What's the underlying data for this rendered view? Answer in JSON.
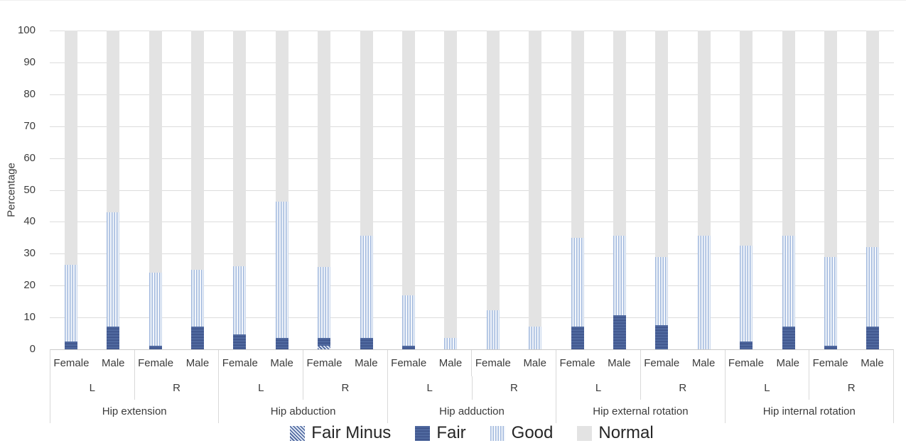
{
  "chart_data": {
    "type": "bar",
    "stacked": true,
    "orientation": "vertical",
    "title": "",
    "ylabel": "Percentage",
    "xlabel": "",
    "ylim": [
      0,
      100
    ],
    "yticks": [
      0,
      10,
      20,
      30,
      40,
      50,
      60,
      70,
      80,
      90,
      100
    ],
    "grid": true,
    "legend_position": "bottom",
    "series_order": [
      "fair_minus",
      "fair",
      "good",
      "normal"
    ],
    "legend": [
      {
        "key": "fair_minus",
        "label": "Fair Minus",
        "pattern": "diagonal-hatch",
        "color": "#46619b"
      },
      {
        "key": "fair",
        "label": "Fair",
        "pattern": "horizontal-stripes",
        "color": "#46619b"
      },
      {
        "key": "good",
        "label": "Good",
        "pattern": "vertical-stripes",
        "color": "#a2b9de"
      },
      {
        "key": "normal",
        "label": "Normal",
        "pattern": "solid",
        "color": "#e3e3e3"
      }
    ],
    "groups": [
      {
        "movement": "Hip extension",
        "sides": [
          {
            "side": "L",
            "bars": [
              {
                "sex": "Female",
                "fair_minus": 0,
                "fair": 2.4,
                "good": 24.1,
                "normal": 73.5
              },
              {
                "sex": "Male",
                "fair_minus": 0,
                "fair": 7.1,
                "good": 35.8,
                "normal": 57.1
              }
            ]
          },
          {
            "side": "R",
            "bars": [
              {
                "sex": "Female",
                "fair_minus": 0,
                "fair": 1.2,
                "good": 22.8,
                "normal": 76.0
              },
              {
                "sex": "Male",
                "fair_minus": 0,
                "fair": 7.1,
                "good": 17.9,
                "normal": 75.0
              }
            ]
          }
        ]
      },
      {
        "movement": "Hip abduction",
        "sides": [
          {
            "side": "L",
            "bars": [
              {
                "sex": "Female",
                "fair_minus": 0,
                "fair": 4.7,
                "good": 21.3,
                "normal": 74.0
              },
              {
                "sex": "Male",
                "fair_minus": 0,
                "fair": 3.6,
                "good": 42.8,
                "normal": 53.6
              }
            ]
          },
          {
            "side": "R",
            "bars": [
              {
                "sex": "Female",
                "fair_minus": 1.2,
                "fair": 2.4,
                "good": 22.3,
                "normal": 74.1
              },
              {
                "sex": "Male",
                "fair_minus": 0,
                "fair": 3.6,
                "good": 32.1,
                "normal": 64.3
              }
            ]
          }
        ]
      },
      {
        "movement": "Hip adduction",
        "sides": [
          {
            "side": "L",
            "bars": [
              {
                "sex": "Female",
                "fair_minus": 0,
                "fair": 1.2,
                "good": 15.8,
                "normal": 83.0
              },
              {
                "sex": "Male",
                "fair_minus": 0,
                "fair": 0,
                "good": 3.6,
                "normal": 96.4
              }
            ]
          },
          {
            "side": "R",
            "bars": [
              {
                "sex": "Female",
                "fair_minus": 0,
                "fair": 0,
                "good": 12.2,
                "normal": 87.8
              },
              {
                "sex": "Male",
                "fair_minus": 0,
                "fair": 0,
                "good": 7.1,
                "normal": 92.9
              }
            ]
          }
        ]
      },
      {
        "movement": "Hip external rotation",
        "sides": [
          {
            "side": "L",
            "bars": [
              {
                "sex": "Female",
                "fair_minus": 0,
                "fair": 7.1,
                "good": 27.9,
                "normal": 65.0
              },
              {
                "sex": "Male",
                "fair_minus": 0,
                "fair": 10.7,
                "good": 25.0,
                "normal": 64.3
              }
            ]
          },
          {
            "side": "R",
            "bars": [
              {
                "sex": "Female",
                "fair_minus": 0,
                "fair": 7.6,
                "good": 21.4,
                "normal": 71.0
              },
              {
                "sex": "Male",
                "fair_minus": 0,
                "fair": 0,
                "good": 35.7,
                "normal": 64.3
              }
            ]
          }
        ]
      },
      {
        "movement": "Hip internal rotation",
        "sides": [
          {
            "side": "L",
            "bars": [
              {
                "sex": "Female",
                "fair_minus": 0,
                "fair": 2.4,
                "good": 30.1,
                "normal": 67.5
              },
              {
                "sex": "Male",
                "fair_minus": 0,
                "fair": 7.1,
                "good": 28.6,
                "normal": 64.3
              }
            ]
          },
          {
            "side": "R",
            "bars": [
              {
                "sex": "Female",
                "fair_minus": 0,
                "fair": 1.2,
                "good": 27.8,
                "normal": 71.0
              },
              {
                "sex": "Male",
                "fair_minus": 0,
                "fair": 7.1,
                "good": 25.0,
                "normal": 67.9
              }
            ]
          }
        ]
      }
    ],
    "colors": {
      "fair_minus": "#46619b",
      "fair": "#46619b",
      "good": "#a2b9de",
      "normal": "#e3e3e3",
      "gridline": "#dcdcdc",
      "axis_text": "#3b3b3b"
    }
  }
}
